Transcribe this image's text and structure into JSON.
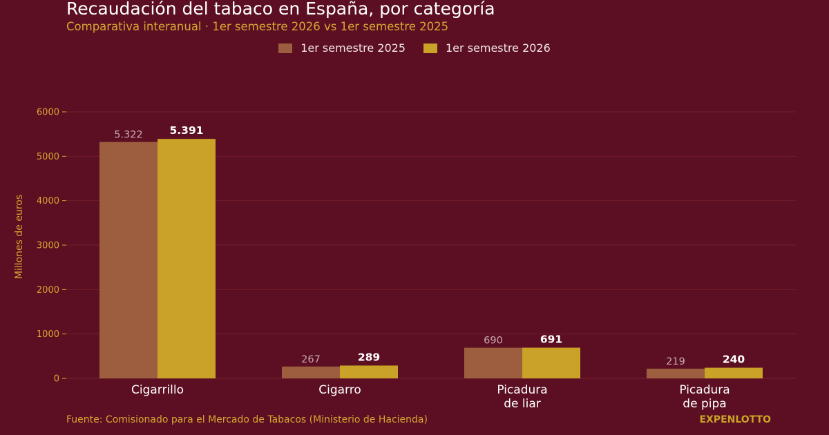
{
  "header": {
    "title": "Recaudación del tabaco en España, por categoría",
    "subtitle": "Comparativa interanual · 1er semestre 2026 vs 1er semestre 2025"
  },
  "legend": [
    {
      "label": "1er semestre 2025",
      "color": "#9c5e3e"
    },
    {
      "label": "1er semestre 2026",
      "color": "#c9a227"
    }
  ],
  "colors": {
    "background": "#5c0f22",
    "accent": "#d9a633",
    "grid": "#741c2c"
  },
  "chart_data": {
    "type": "bar",
    "categories": [
      [
        "Cigarrillo"
      ],
      [
        "Cigarro"
      ],
      [
        "Picadura",
        "de liar"
      ],
      [
        "Picadura",
        "de pipa"
      ]
    ],
    "series": [
      {
        "name": "1er semestre 2025",
        "values": [
          5322,
          267,
          690,
          219
        ],
        "labels": [
          "5.322",
          "267",
          "690",
          "219"
        ],
        "color": "#9c5e3e"
      },
      {
        "name": "1er semestre 2026",
        "values": [
          5391,
          289,
          691,
          240
        ],
        "labels": [
          "5.391",
          "289",
          "691",
          "240"
        ],
        "color": "#c9a227"
      }
    ],
    "ylabel": "Millones de euros",
    "ylim": [
      0,
      6000
    ],
    "yticks": [
      0,
      1000,
      2000,
      3000,
      4000,
      5000,
      6000
    ],
    "grid": true
  },
  "footer": {
    "source": "Fuente: Comisionado para el Mercado de Tabacos (Ministerio de Hacienda)",
    "brand": "EXPENLOTTO"
  }
}
